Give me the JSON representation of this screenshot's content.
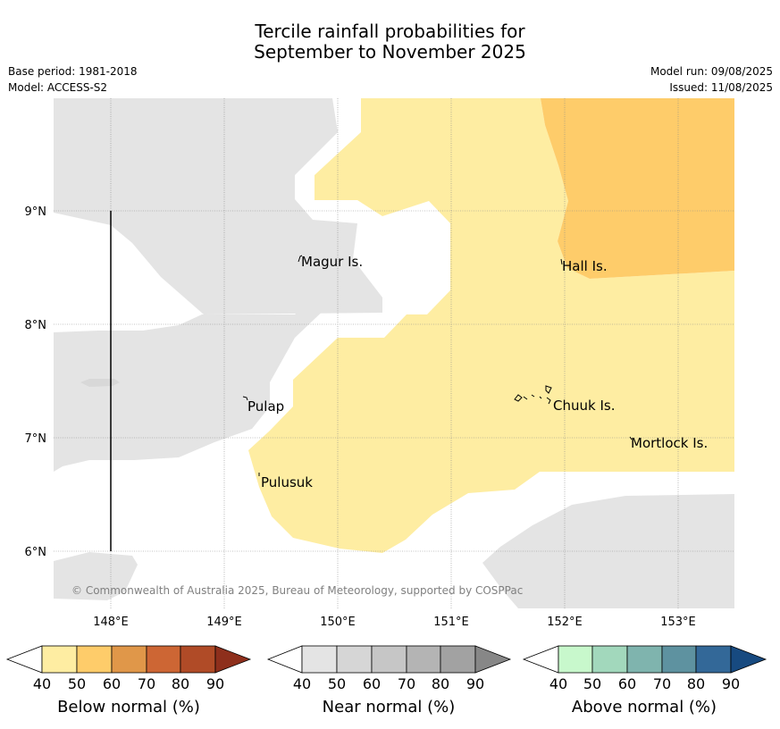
{
  "header": {
    "title_line1": "Tercile rainfall probabilities for",
    "title_line2": "September to November 2025",
    "base_period": "Base period: 1981-2018",
    "model": "Model: ACCESS-S2",
    "model_run": "Model run: 09/08/2025",
    "issued": "Issued: 11/08/2025"
  },
  "map": {
    "x_ticks": [
      "148°E",
      "149°E",
      "150°E",
      "151°E",
      "152°E",
      "153°E"
    ],
    "y_ticks": [
      "9°N",
      "8°N",
      "7°N",
      "6°N"
    ],
    "places": {
      "magur": "Magur Is.",
      "hall": "Hall Is.",
      "pulap": "Pulap",
      "chuuk": "Chuuk Is.",
      "mortlock": "Mortlock Is.",
      "pulusuk": "Pulusuk"
    },
    "copyright": "© Commonwealth of Australia 2025, Bureau of Meteorology, supported by COSPPac",
    "colors": {
      "near_normal": "#e4e4e4",
      "below_40_50": "#feeda2",
      "below_50_60": "#fecc6a",
      "ocean_bg": "#ffffff"
    }
  },
  "colorbars": [
    {
      "label": "Below normal (%)",
      "ticks": [
        "40",
        "50",
        "60",
        "70",
        "80",
        "90"
      ],
      "colors": [
        "#feeda2",
        "#fecc6a",
        "#e09749",
        "#cd6634",
        "#b04b27",
        "#8e2f1c"
      ]
    },
    {
      "label": "Near normal (%)",
      "ticks": [
        "40",
        "50",
        "60",
        "70",
        "80",
        "90"
      ],
      "colors": [
        "#e4e4e4",
        "#d6d6d6",
        "#c6c6c6",
        "#b4b4b4",
        "#a2a2a2",
        "#878787"
      ]
    },
    {
      "label": "Above normal (%)",
      "ticks": [
        "40",
        "50",
        "60",
        "70",
        "80",
        "90"
      ],
      "colors": [
        "#c8f8cc",
        "#a2d8bc",
        "#7fb4ae",
        "#5e92a0",
        "#336898",
        "#174a80"
      ]
    }
  ]
}
